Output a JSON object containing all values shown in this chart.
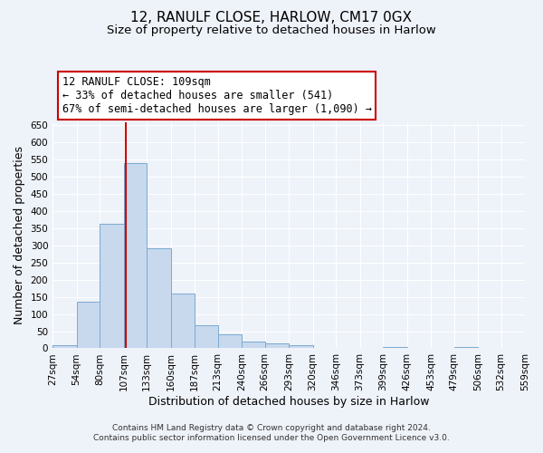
{
  "title": "12, RANULF CLOSE, HARLOW, CM17 0GX",
  "subtitle": "Size of property relative to detached houses in Harlow",
  "xlabel": "Distribution of detached houses by size in Harlow",
  "ylabel": "Number of detached properties",
  "bar_color": "#c8d9ee",
  "bar_edge_color": "#7aaad0",
  "background_color": "#eef2f9",
  "grid_color": "#ffffff",
  "vline_x": 109,
  "vline_color": "#cc0000",
  "annotation_box_color": "#cc0000",
  "annotation_lines": [
    "12 RANULF CLOSE: 109sqm",
    "← 33% of detached houses are smaller (541)",
    "67% of semi-detached houses are larger (1,090) →"
  ],
  "bin_edges": [
    27,
    54,
    80,
    107,
    133,
    160,
    187,
    213,
    240,
    266,
    293,
    320,
    346,
    373,
    399,
    426,
    453,
    479,
    506,
    532,
    559
  ],
  "bin_counts": [
    10,
    136,
    362,
    540,
    292,
    159,
    67,
    40,
    20,
    14,
    8,
    0,
    0,
    0,
    5,
    0,
    0,
    5,
    0,
    0
  ],
  "tick_labels": [
    "27sqm",
    "54sqm",
    "80sqm",
    "107sqm",
    "133sqm",
    "160sqm",
    "187sqm",
    "213sqm",
    "240sqm",
    "266sqm",
    "293sqm",
    "320sqm",
    "346sqm",
    "373sqm",
    "399sqm",
    "426sqm",
    "453sqm",
    "479sqm",
    "506sqm",
    "532sqm",
    "559sqm"
  ],
  "ylim": [
    0,
    660
  ],
  "yticks": [
    0,
    50,
    100,
    150,
    200,
    250,
    300,
    350,
    400,
    450,
    500,
    550,
    600,
    650
  ],
  "footer_line1": "Contains HM Land Registry data © Crown copyright and database right 2024.",
  "footer_line2": "Contains public sector information licensed under the Open Government Licence v3.0.",
  "title_fontsize": 11,
  "subtitle_fontsize": 9.5,
  "axis_label_fontsize": 9,
  "tick_fontsize": 7.5,
  "annotation_fontsize": 8.5,
  "footer_fontsize": 6.5
}
